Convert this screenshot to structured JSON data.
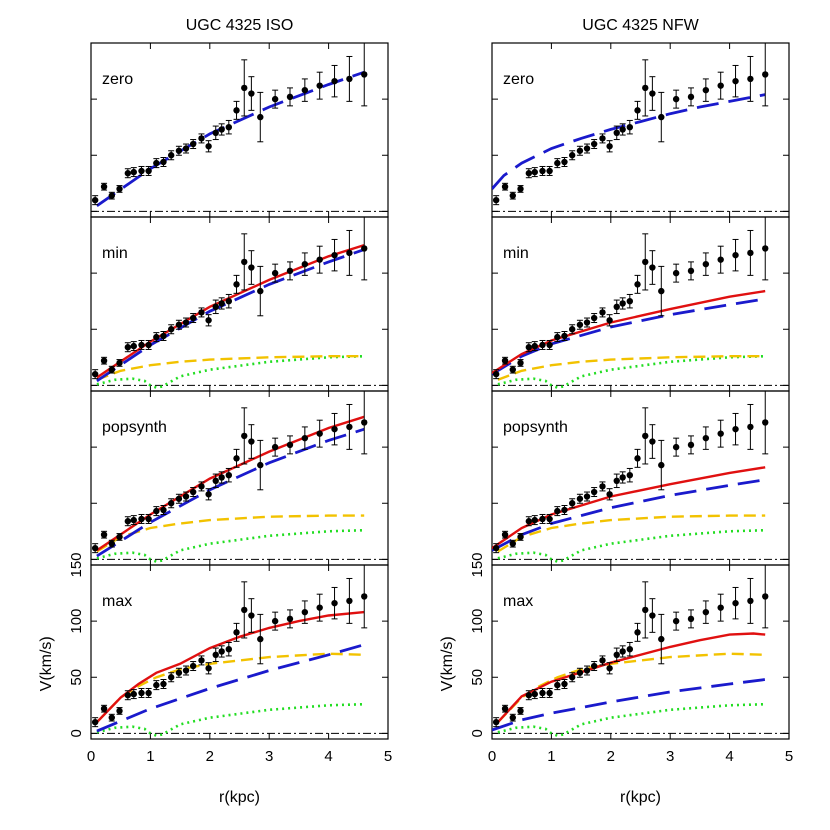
{
  "chart_data": {
    "type": "scatter",
    "columns": [
      {
        "title": "UGC 4325 ISO",
        "fits": {
          "zero": {
            "gas": [],
            "disk": [],
            "halo": [
              [
                0.1,
                5
              ],
              [
                1,
                38
              ],
              [
                2,
                69
              ],
              [
                3,
                93
              ],
              [
                4,
                113
              ],
              [
                4.6,
                124
              ]
            ],
            "total": []
          },
          "min": {
            "gas": [
              [
                0.1,
                1
              ],
              [
                0.4,
                5
              ],
              [
                0.7,
                6
              ],
              [
                0.9,
                4
              ],
              [
                1.0,
                0
              ],
              [
                1.1,
                -2
              ],
              [
                1.2,
                -1
              ],
              [
                1.5,
                8
              ],
              [
                2,
                14
              ],
              [
                3,
                21
              ],
              [
                4,
                25
              ],
              [
                4.6,
                26
              ]
            ],
            "disk": [
              [
                0.1,
                5
              ],
              [
                0.5,
                13
              ],
              [
                1,
                18
              ],
              [
                1.5,
                21
              ],
              [
                2,
                23
              ],
              [
                3,
                25
              ],
              [
                4,
                26
              ],
              [
                4.6,
                26
              ]
            ],
            "halo": [
              [
                0.1,
                4
              ],
              [
                1,
                36
              ],
              [
                2,
                66
              ],
              [
                3,
                90
              ],
              [
                4,
                110
              ],
              [
                4.6,
                121
              ]
            ],
            "total": [
              [
                0.1,
                7
              ],
              [
                1,
                39
              ],
              [
                2,
                70
              ],
              [
                3,
                94
              ],
              [
                4,
                115
              ],
              [
                4.6,
                125
              ]
            ]
          },
          "popsynth": {
            "gas": [
              [
                0.1,
                1
              ],
              [
                0.4,
                5
              ],
              [
                0.7,
                6
              ],
              [
                0.9,
                4
              ],
              [
                1.0,
                0
              ],
              [
                1.1,
                -2
              ],
              [
                1.2,
                -1
              ],
              [
                1.5,
                8
              ],
              [
                2,
                14
              ],
              [
                3,
                21
              ],
              [
                4,
                25
              ],
              [
                4.6,
                26
              ]
            ],
            "disk": [
              [
                0.1,
                7
              ],
              [
                0.5,
                20
              ],
              [
                1,
                28
              ],
              [
                1.5,
                32
              ],
              [
                2,
                35
              ],
              [
                3,
                38
              ],
              [
                4,
                39
              ],
              [
                4.6,
                39
              ]
            ],
            "halo": [
              [
                0.1,
                3
              ],
              [
                1,
                33
              ],
              [
                2,
                62
              ],
              [
                3,
                86
              ],
              [
                4,
                106
              ],
              [
                4.6,
                116
              ]
            ],
            "total": [
              [
                0.1,
                8
              ],
              [
                1,
                40
              ],
              [
                2,
                72
              ],
              [
                3,
                96
              ],
              [
                4,
                117
              ],
              [
                4.6,
                127
              ]
            ]
          },
          "max": {
            "gas": [
              [
                0.1,
                1
              ],
              [
                0.4,
                5
              ],
              [
                0.7,
                6
              ],
              [
                0.9,
                4
              ],
              [
                1.0,
                0
              ],
              [
                1.1,
                -2
              ],
              [
                1.2,
                -1
              ],
              [
                1.5,
                8
              ],
              [
                2,
                14
              ],
              [
                3,
                21
              ],
              [
                4,
                25
              ],
              [
                4.6,
                26
              ]
            ],
            "disk": [
              [
                0.1,
                10
              ],
              [
                0.5,
                32
              ],
              [
                0.8,
                42
              ],
              [
                1.1,
                50
              ],
              [
                1.5,
                57
              ],
              [
                2,
                62
              ],
              [
                3,
                68
              ],
              [
                4,
                71
              ],
              [
                4.6,
                70
              ]
            ],
            "halo": [
              [
                0.1,
                2
              ],
              [
                1,
                22
              ],
              [
                2,
                40
              ],
              [
                3,
                56
              ],
              [
                4,
                70
              ],
              [
                4.6,
                79
              ]
            ],
            "total": [
              [
                0.1,
                10
              ],
              [
                0.5,
                32
              ],
              [
                0.8,
                44
              ],
              [
                1.1,
                54
              ],
              [
                1.5,
                62
              ],
              [
                2,
                76
              ],
              [
                2.5,
                86
              ],
              [
                3,
                94
              ],
              [
                3.5,
                100
              ],
              [
                4,
                105
              ],
              [
                4.6,
                108
              ]
            ]
          }
        }
      },
      {
        "title": "UGC 4325 NFW",
        "fits": {
          "zero": {
            "gas": [],
            "disk": [],
            "halo": [
              [
                0,
                20
              ],
              [
                0.2,
                32
              ],
              [
                0.5,
                43
              ],
              [
                1,
                56
              ],
              [
                1.5,
                65
              ],
              [
                2,
                73
              ],
              [
                2.5,
                80
              ],
              [
                3,
                87
              ],
              [
                3.5,
                93
              ],
              [
                4,
                98
              ],
              [
                4.6,
                104
              ]
            ],
            "total": []
          },
          "min": {
            "gas": [
              [
                0.1,
                1
              ],
              [
                0.4,
                5
              ],
              [
                0.7,
                6
              ],
              [
                0.9,
                4
              ],
              [
                1.0,
                0
              ],
              [
                1.1,
                -2
              ],
              [
                1.2,
                -1
              ],
              [
                1.5,
                8
              ],
              [
                2,
                14
              ],
              [
                3,
                21
              ],
              [
                4,
                25
              ],
              [
                4.6,
                26
              ]
            ],
            "disk": [
              [
                0.1,
                5
              ],
              [
                0.5,
                13
              ],
              [
                1,
                18
              ],
              [
                1.5,
                21
              ],
              [
                2,
                23
              ],
              [
                3,
                25
              ],
              [
                4,
                26
              ],
              [
                4.6,
                26
              ]
            ],
            "halo": [
              [
                0,
                10
              ],
              [
                0.5,
                26
              ],
              [
                1,
                37
              ],
              [
                2,
                52
              ],
              [
                3,
                63
              ],
              [
                4,
                72
              ],
              [
                4.6,
                77
              ]
            ],
            "total": [
              [
                0,
                11
              ],
              [
                0.5,
                28
              ],
              [
                1,
                40
              ],
              [
                2,
                56
              ],
              [
                3,
                68
              ],
              [
                4,
                79
              ],
              [
                4.6,
                84
              ]
            ]
          },
          "popsynth": {
            "gas": [
              [
                0.1,
                1
              ],
              [
                0.4,
                5
              ],
              [
                0.7,
                6
              ],
              [
                0.9,
                4
              ],
              [
                1.0,
                0
              ],
              [
                1.1,
                -2
              ],
              [
                1.2,
                -1
              ],
              [
                1.5,
                8
              ],
              [
                2,
                14
              ],
              [
                3,
                21
              ],
              [
                4,
                25
              ],
              [
                4.6,
                26
              ]
            ],
            "disk": [
              [
                0.1,
                7
              ],
              [
                0.5,
                20
              ],
              [
                1,
                28
              ],
              [
                1.5,
                32
              ],
              [
                2,
                35
              ],
              [
                3,
                38
              ],
              [
                4,
                39
              ],
              [
                4.6,
                39
              ]
            ],
            "halo": [
              [
                0,
                8
              ],
              [
                0.5,
                22
              ],
              [
                1,
                32
              ],
              [
                2,
                46
              ],
              [
                3,
                57
              ],
              [
                4,
                66
              ],
              [
                4.6,
                71
              ]
            ],
            "total": [
              [
                0,
                10
              ],
              [
                0.5,
                28
              ],
              [
                1,
                40
              ],
              [
                2,
                56
              ],
              [
                3,
                67
              ],
              [
                4,
                77
              ],
              [
                4.6,
                82
              ]
            ]
          },
          "max": {
            "gas": [
              [
                0.1,
                1
              ],
              [
                0.4,
                5
              ],
              [
                0.7,
                6
              ],
              [
                0.9,
                4
              ],
              [
                1.0,
                0
              ],
              [
                1.1,
                -2
              ],
              [
                1.2,
                -1
              ],
              [
                1.5,
                8
              ],
              [
                2,
                14
              ],
              [
                3,
                21
              ],
              [
                4,
                25
              ],
              [
                4.6,
                26
              ]
            ],
            "disk": [
              [
                0.1,
                10
              ],
              [
                0.5,
                32
              ],
              [
                0.8,
                42
              ],
              [
                1.1,
                50
              ],
              [
                1.5,
                57
              ],
              [
                2,
                62
              ],
              [
                3,
                68
              ],
              [
                4,
                71
              ],
              [
                4.6,
                70
              ]
            ],
            "halo": [
              [
                0,
                3
              ],
              [
                0.5,
                12
              ],
              [
                1,
                18
              ],
              [
                2,
                28
              ],
              [
                3,
                37
              ],
              [
                4,
                44
              ],
              [
                4.6,
                48
              ]
            ],
            "total": [
              [
                0.1,
                10
              ],
              [
                0.5,
                33
              ],
              [
                1,
                46
              ],
              [
                2,
                63
              ],
              [
                3,
                77
              ],
              [
                3.5,
                83
              ],
              [
                4,
                88
              ],
              [
                4.4,
                89
              ],
              [
                4.6,
                88
              ]
            ]
          }
        }
      }
    ],
    "panels": [
      "zero",
      "min",
      "popsynth",
      "max"
    ],
    "observed": {
      "r": [
        0.07,
        0.22,
        0.35,
        0.48,
        0.62,
        0.72,
        0.85,
        0.97,
        1.1,
        1.22,
        1.35,
        1.48,
        1.6,
        1.72,
        1.86,
        1.98,
        2.1,
        2.2,
        2.32,
        2.45,
        2.58,
        2.7,
        2.85,
        3.1,
        3.35,
        3.6,
        3.85,
        4.1,
        4.35,
        4.6
      ],
      "v": [
        10,
        22,
        14,
        20,
        34,
        35,
        36,
        36,
        43,
        44,
        50,
        54,
        56,
        60,
        65,
        58,
        70,
        73,
        75,
        90,
        110,
        105,
        84,
        100,
        102,
        108,
        112,
        116,
        118,
        122
      ],
      "err": [
        4,
        3,
        3,
        3,
        4,
        4,
        4,
        4,
        4,
        4,
        4,
        4,
        4,
        4,
        4,
        5,
        6,
        5,
        6,
        8,
        25,
        15,
        22,
        8,
        8,
        10,
        12,
        14,
        20,
        28
      ]
    },
    "xlabel": "r(kpc)",
    "ylabel": "V(km/s)",
    "xlim": [
      0,
      5
    ],
    "ylim": [
      -5,
      150
    ],
    "xticks": [
      "0",
      "1",
      "2",
      "3",
      "4",
      "5"
    ],
    "yticks": [
      "0",
      "50",
      "100",
      "150"
    ],
    "colors": {
      "points": "#000000",
      "gas": "#22dd22",
      "disk": "#f2c200",
      "halo": "#1a1acc",
      "total": "#e01010"
    }
  }
}
